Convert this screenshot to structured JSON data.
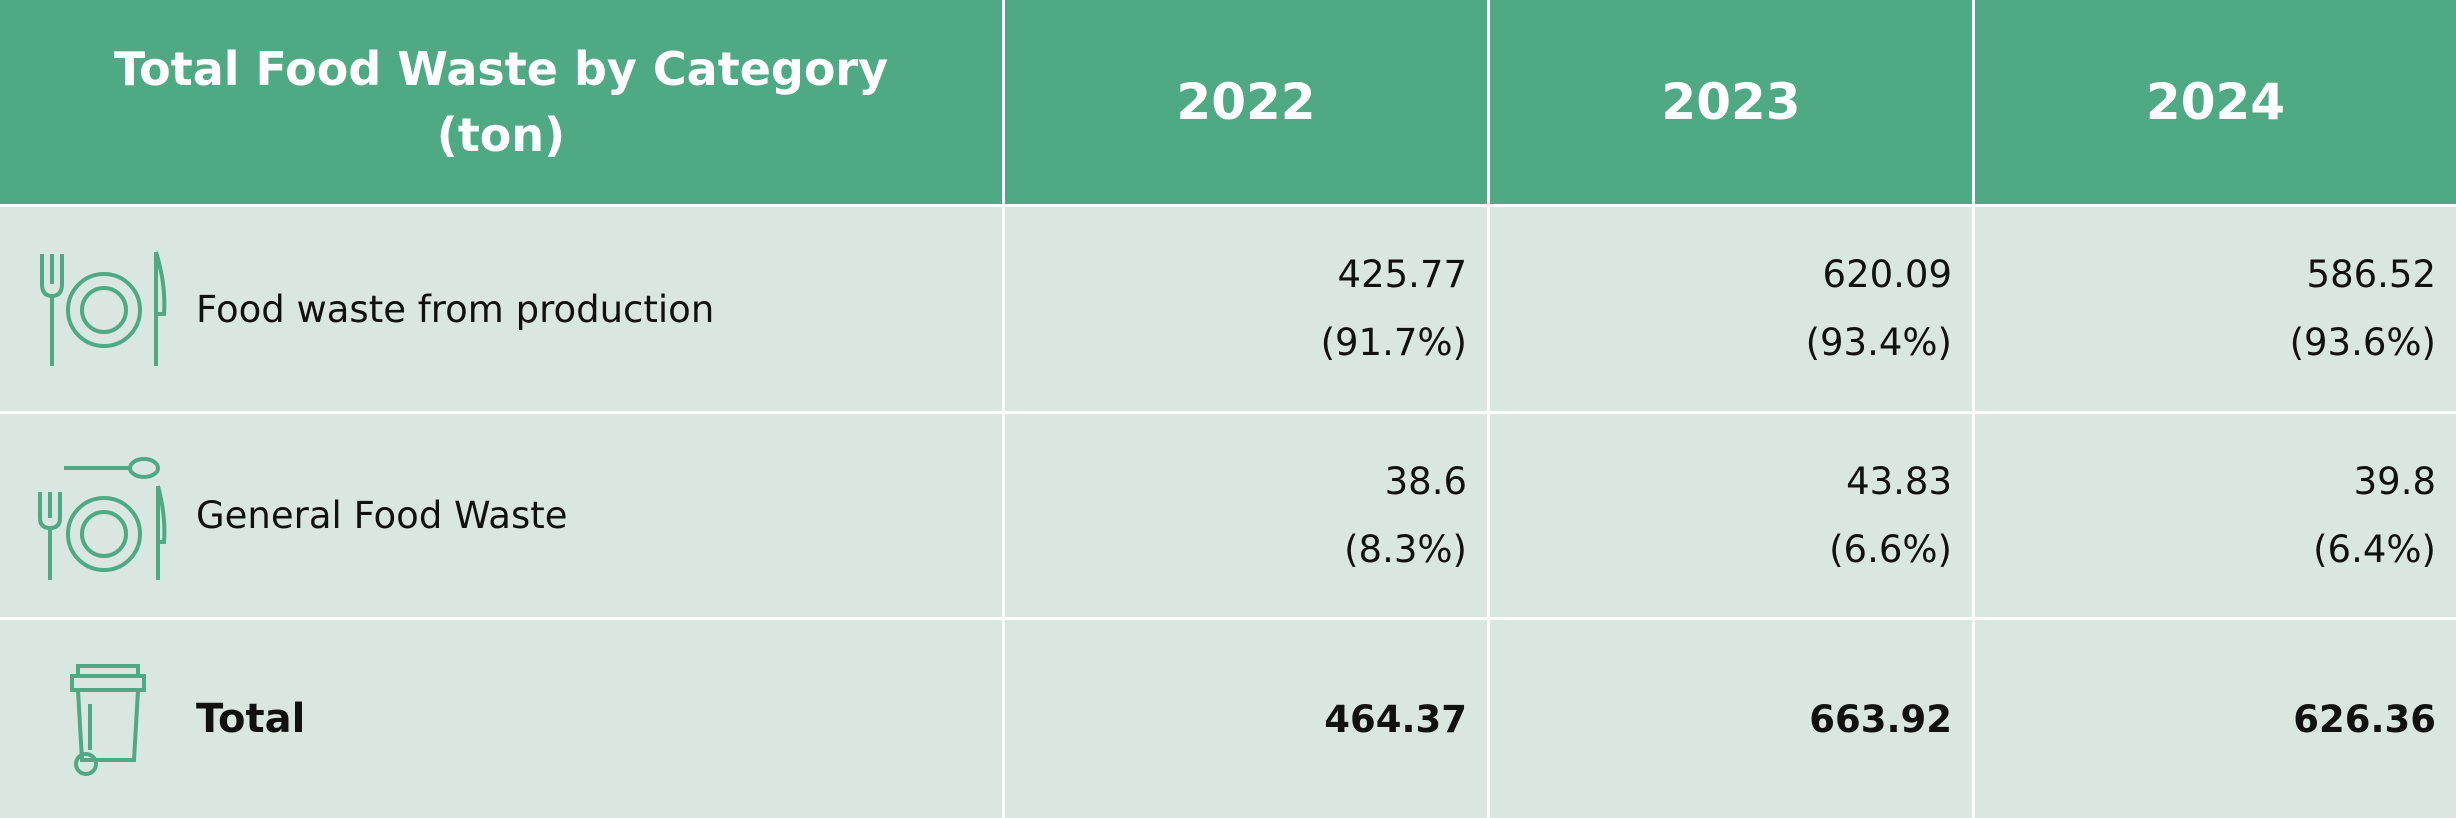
{
  "table": {
    "header": [
      "Total Food Waste by Category (ton)",
      "2022",
      "2023",
      "2024"
    ],
    "rows": [
      {
        "label": "Food waste from production",
        "cells": [
          {
            "value": "425.77",
            "share": "(91.7%)"
          },
          {
            "value": "620.09",
            "share": "(93.4%)"
          },
          {
            "value": "586.52",
            "share": "(93.6%)"
          }
        ]
      },
      {
        "label": "General Food Waste",
        "cells": [
          {
            "value": "38.6",
            "share": "(8.3%)"
          },
          {
            "value": "43.83",
            "share": "(6.6%)"
          },
          {
            "value": "39.8",
            "share": "(6.4%)"
          }
        ]
      }
    ],
    "total": {
      "label": "Total",
      "values": [
        "464.37",
        "663.92",
        "626.36"
      ]
    }
  }
}
